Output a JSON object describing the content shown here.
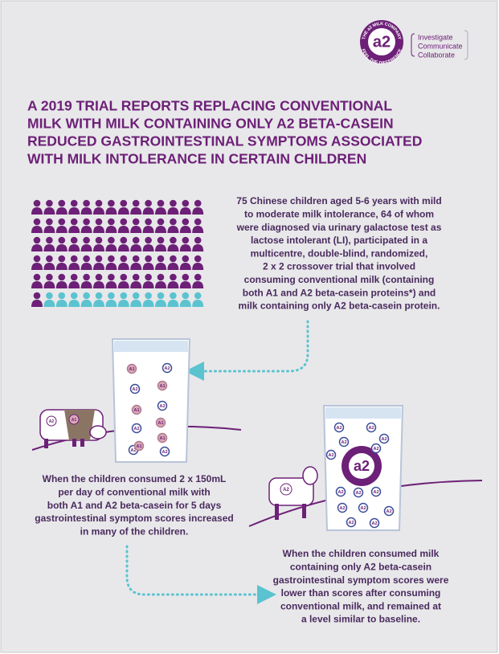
{
  "logo": {
    "mark": "a2",
    "ring_top": "THE a2 MILK COMPANY",
    "ring_bottom": "FEEL THE DIFFERENCE",
    "tagline": [
      "Investigate",
      "Communicate",
      "Collaborate"
    ]
  },
  "title": [
    "A 2019 TRIAL REPORTS REPLACING CONVENTIONAL",
    "MILK WITH MILK CONTAINING ONLY A2 BETA-CASEIN",
    "REDUCED GASTROINTESTINAL SYMPTOMS ASSOCIATED",
    "WITH MILK INTOLERANCE IN CERTAIN CHILDREN"
  ],
  "intro": [
    "75 Chinese children aged 5-6 years with mild",
    "to moderate milk intolerance, 64 of whom",
    "were diagnosed via urinary galactose test as",
    "lactose intolerant (LI), participated in a",
    "multicentre, double-blind, randomized,",
    "2 x 2 crossover trial that involved",
    "consuming conventional milk (containing",
    "both A1 and A2 beta-casein proteins*) and",
    "milk containing only A2 beta-casein protein."
  ],
  "glass_conventional": {
    "bubbles": [
      "A1",
      "A2",
      "A2",
      "A1",
      "A1",
      "A2",
      "A2",
      "A1",
      "A2",
      "A1",
      "A1",
      "A2"
    ]
  },
  "cow_conventional": {
    "labels": [
      "A2",
      "A1"
    ]
  },
  "caption_conventional": [
    "When the children consumed 2 x 150mL",
    "per day of conventional milk with",
    "both A1 and A2 beta-casein for 5 days",
    "gastrointestinal symptom scores increased",
    "in many of the children."
  ],
  "glass_a2": {
    "logo": "a2",
    "bubbles": [
      "A2",
      "A2",
      "A2",
      "A2",
      "A2",
      "A2",
      "A2",
      "A2",
      "A2",
      "A2",
      "A2",
      "A2",
      "A2",
      "A2"
    ]
  },
  "cow_a2": {
    "label": "A2"
  },
  "caption_a2": [
    "When the children consumed milk",
    "containing only A2 beta-casein",
    "gastrointestinal symptom scores were",
    "lower than scores after consuming",
    "conventional milk, and remained at",
    "a level similar to baseline."
  ]
}
